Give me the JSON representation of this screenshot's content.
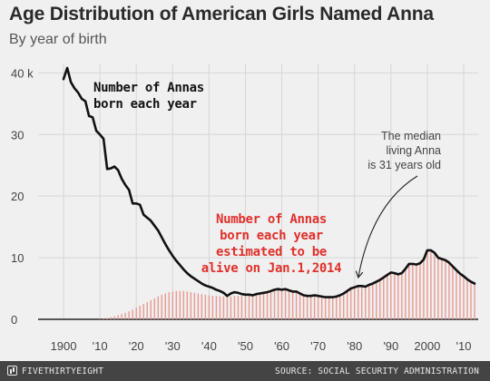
{
  "header": {
    "title": "Age Distribution of American Girls Named Anna",
    "subtitle": "By year of birth"
  },
  "footer": {
    "brand": "FIVETHIRTYEIGHT",
    "source": "SOURCE: SOCIAL SECURITY ADMINISTRATION"
  },
  "colors": {
    "background": "#f0f0f0",
    "born_line": "#111111",
    "alive_bars": "#e89a92",
    "alive_label": "#e0302a",
    "footer_bg": "#444444"
  },
  "chart_data": {
    "type": "area",
    "title": "Age Distribution of American Girls Named Anna",
    "subtitle": "By year of birth",
    "xlim": [
      1895,
      2014
    ],
    "ylim": [
      0,
      43
    ],
    "y_ticks": [
      0,
      10,
      20,
      30,
      40
    ],
    "y_tick_labels": [
      "0",
      "10",
      "20",
      "30",
      "40 k"
    ],
    "x_ticks": [
      1900,
      1910,
      1920,
      1930,
      1940,
      1950,
      1960,
      1970,
      1980,
      1990,
      2000,
      2010
    ],
    "x_tick_labels": [
      "1900",
      "'10",
      "'20",
      "'30",
      "'40",
      "'50",
      "'60",
      "'70",
      "'80",
      "'90",
      "2000",
      "'10"
    ],
    "grid": true,
    "series": [
      {
        "name": "Number of Annas born each year",
        "type": "line",
        "x": [
          1900,
          1901,
          1902,
          1903,
          1904,
          1905,
          1906,
          1907,
          1908,
          1909,
          1910,
          1911,
          1912,
          1913,
          1914,
          1915,
          1916,
          1917,
          1918,
          1919,
          1920,
          1921,
          1922,
          1923,
          1924,
          1925,
          1926,
          1927,
          1928,
          1929,
          1930,
          1931,
          1932,
          1933,
          1934,
          1935,
          1936,
          1937,
          1938,
          1939,
          1940,
          1941,
          1942,
          1943,
          1944,
          1945,
          1946,
          1947,
          1948,
          1949,
          1950,
          1951,
          1952,
          1953,
          1954,
          1955,
          1956,
          1957,
          1958,
          1959,
          1960,
          1961,
          1962,
          1963,
          1964,
          1965,
          1966,
          1967,
          1968,
          1969,
          1970,
          1971,
          1972,
          1973,
          1974,
          1975,
          1976,
          1977,
          1978,
          1979,
          1980,
          1981,
          1982,
          1983,
          1984,
          1985,
          1986,
          1987,
          1988,
          1989,
          1990,
          1991,
          1992,
          1993,
          1994,
          1995,
          1996,
          1997,
          1998,
          1999,
          2000,
          2001,
          2002,
          2003,
          2004,
          2005,
          2006,
          2007,
          2008,
          2009,
          2010,
          2011,
          2012,
          2013
        ],
        "values": [
          39,
          40.8,
          38.5,
          37.5,
          36.8,
          35.8,
          35.4,
          33,
          32.8,
          30.6,
          30,
          29.3,
          24.4,
          24.5,
          24.8,
          24.2,
          22.8,
          21.8,
          21,
          18.8,
          18.8,
          18.6,
          17,
          16.5,
          16,
          15.2,
          14.4,
          13.3,
          12.2,
          11.2,
          10.3,
          9.5,
          8.8,
          8.1,
          7.5,
          7,
          6.6,
          6.2,
          5.8,
          5.5,
          5.3,
          5.1,
          4.8,
          4.6,
          4.3,
          3.8,
          4.2,
          4.4,
          4.3,
          4.1,
          4,
          4,
          3.9,
          4.1,
          4.2,
          4.3,
          4.4,
          4.6,
          4.8,
          4.9,
          4.8,
          4.9,
          4.7,
          4.5,
          4.5,
          4.2,
          3.9,
          3.8,
          3.8,
          3.9,
          3.8,
          3.7,
          3.6,
          3.6,
          3.6,
          3.7,
          3.9,
          4.2,
          4.6,
          5,
          5.2,
          5.4,
          5.4,
          5.3,
          5.6,
          5.8,
          6.1,
          6.4,
          6.8,
          7.2,
          7.6,
          7.5,
          7.3,
          7.5,
          8.2,
          9,
          9,
          8.9,
          9.1,
          9.7,
          11.2,
          11.2,
          10.8,
          10,
          9.8,
          9.6,
          9.2,
          8.6,
          8,
          7.4,
          7,
          6.5,
          6.1,
          5.8
        ]
      },
      {
        "name": "Number of Annas born each year estimated to be alive on Jan.1,2014",
        "type": "bar",
        "x": [
          1900,
          1901,
          1902,
          1903,
          1904,
          1905,
          1906,
          1907,
          1908,
          1909,
          1910,
          1911,
          1912,
          1913,
          1914,
          1915,
          1916,
          1917,
          1918,
          1919,
          1920,
          1921,
          1922,
          1923,
          1924,
          1925,
          1926,
          1927,
          1928,
          1929,
          1930,
          1931,
          1932,
          1933,
          1934,
          1935,
          1936,
          1937,
          1938,
          1939,
          1940,
          1941,
          1942,
          1943,
          1944,
          1945,
          1946,
          1947,
          1948,
          1949,
          1950,
          1951,
          1952,
          1953,
          1954,
          1955,
          1956,
          1957,
          1958,
          1959,
          1960,
          1961,
          1962,
          1963,
          1964,
          1965,
          1966,
          1967,
          1968,
          1969,
          1970,
          1971,
          1972,
          1973,
          1974,
          1975,
          1976,
          1977,
          1978,
          1979,
          1980,
          1981,
          1982,
          1983,
          1984,
          1985,
          1986,
          1987,
          1988,
          1989,
          1990,
          1991,
          1992,
          1993,
          1994,
          1995,
          1996,
          1997,
          1998,
          1999,
          2000,
          2001,
          2002,
          2003,
          2004,
          2005,
          2006,
          2007,
          2008,
          2009,
          2010,
          2011,
          2012,
          2013
        ],
        "values": [
          0,
          0,
          0,
          0,
          0,
          0,
          0,
          0,
          0,
          0,
          0.05,
          0.1,
          0.2,
          0.35,
          0.5,
          0.65,
          0.85,
          1.05,
          1.3,
          1.55,
          1.9,
          2.2,
          2.5,
          2.8,
          3.1,
          3.4,
          3.7,
          4,
          4.2,
          4.4,
          4.5,
          4.6,
          4.6,
          4.6,
          4.5,
          4.4,
          4.3,
          4.2,
          4.1,
          4,
          3.9,
          3.8,
          3.8,
          3.75,
          3.7,
          3.6,
          3.7,
          3.8,
          3.8,
          3.8,
          3.8,
          3.85,
          3.85,
          3.95,
          4.05,
          4.15,
          4.25,
          4.4,
          4.6,
          4.7,
          4.65,
          4.7,
          4.55,
          4.4,
          4.35,
          4.1,
          3.85,
          3.75,
          3.75,
          3.85,
          3.75,
          3.65,
          3.55,
          3.55,
          3.55,
          3.65,
          3.85,
          4.15,
          4.55,
          4.95,
          5.15,
          5.35,
          5.35,
          5.25,
          5.55,
          5.75,
          6.05,
          6.35,
          6.75,
          7.15,
          7.55,
          7.45,
          7.25,
          7.45,
          8.15,
          8.95,
          8.95,
          8.85,
          9.05,
          9.65,
          11.1,
          11.1,
          10.7,
          9.9,
          9.7,
          9.5,
          9.1,
          8.5,
          7.9,
          7.3,
          6.9,
          6.4,
          6,
          5.7
        ]
      }
    ],
    "annotations": [
      {
        "lines": [
          "Number of Annas",
          "born each year"
        ]
      },
      {
        "lines": [
          "Number of Annas",
          "born each year",
          "estimated to be",
          "alive on Jan.1,2014"
        ]
      },
      {
        "lines": [
          "The median",
          "living Anna",
          "is 31 years old"
        ]
      }
    ]
  }
}
